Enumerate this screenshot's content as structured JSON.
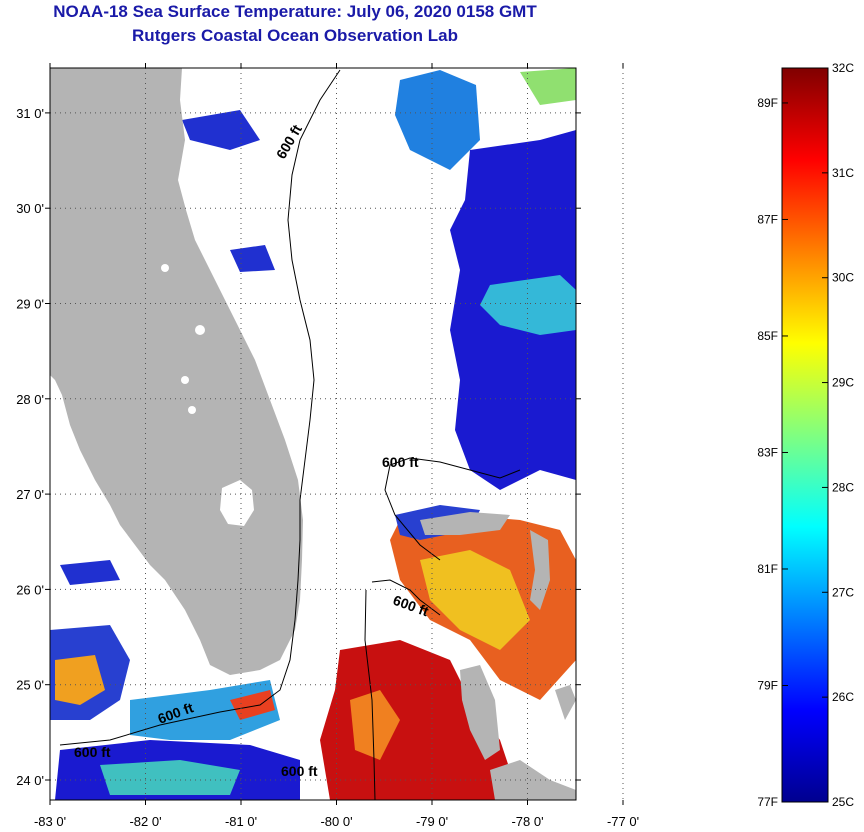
{
  "header": {
    "title": "NOAA-18 Sea Surface Temperature:  July 06, 2020 0158 GMT",
    "subtitle": "Rutgers Coastal Ocean Observation Lab"
  },
  "map": {
    "lat_ticks": [
      {
        "label": "31 0'",
        "value": 31
      },
      {
        "label": "30 0'",
        "value": 30
      },
      {
        "label": "29 0'",
        "value": 29
      },
      {
        "label": "28 0'",
        "value": 28
      },
      {
        "label": "27 0'",
        "value": 27
      },
      {
        "label": "26 0'",
        "value": 26
      },
      {
        "label": "25 0'",
        "value": 25
      },
      {
        "label": "24 0'",
        "value": 24
      }
    ],
    "lon_ticks": [
      {
        "label": "-83 0'",
        "value": -83
      },
      {
        "label": "-82 0'",
        "value": -82
      },
      {
        "label": "-81 0'",
        "value": -81
      },
      {
        "label": "-80 0'",
        "value": -80
      },
      {
        "label": "-79 0'",
        "value": -79
      },
      {
        "label": "-78 0'",
        "value": -78
      },
      {
        "label": "-77 0'",
        "value": -77
      }
    ],
    "contour_labels": [
      "600 ft",
      "600 ft",
      "600 ft",
      "600 ft",
      "600 ft",
      "600 ft"
    ],
    "colors": {
      "land": "#b4b4b4",
      "cloud": "#ffffff",
      "cool_water": "#1010c8",
      "warm_water": "#d82010"
    }
  },
  "colorbar": {
    "celsius": [
      {
        "label": "32C",
        "value": 32
      },
      {
        "label": "31C",
        "value": 31
      },
      {
        "label": "30C",
        "value": 30
      },
      {
        "label": "29C",
        "value": 29
      },
      {
        "label": "28C",
        "value": 28
      },
      {
        "label": "27C",
        "value": 27
      },
      {
        "label": "26C",
        "value": 26
      },
      {
        "label": "25C",
        "value": 25
      }
    ],
    "fahrenheit": [
      {
        "label": "89F",
        "value": 89
      },
      {
        "label": "87F",
        "value": 87
      },
      {
        "label": "85F",
        "value": 85
      },
      {
        "label": "83F",
        "value": 83
      },
      {
        "label": "81F",
        "value": 81
      },
      {
        "label": "79F",
        "value": 79
      },
      {
        "label": "77F",
        "value": 77
      }
    ],
    "range_c": [
      25,
      32
    ]
  }
}
